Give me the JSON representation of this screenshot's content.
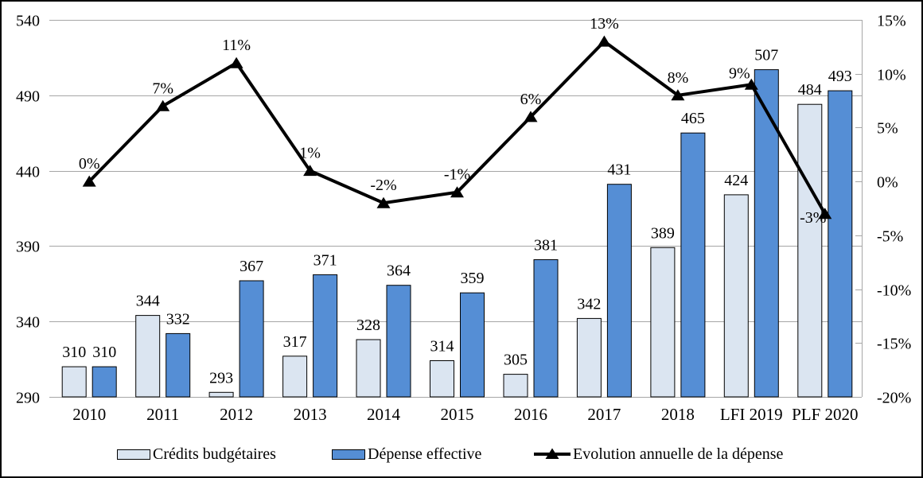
{
  "chart_data": {
    "type": "bar",
    "subtype": "bar+line-dual-axis",
    "categories": [
      "2010",
      "2011",
      "2012",
      "2013",
      "2014",
      "2015",
      "2016",
      "2017",
      "2018",
      "LFI 2019",
      "PLF 2020"
    ],
    "series": [
      {
        "name": "Crédits budgétaires",
        "type": "bar",
        "axis": "left",
        "color": "#dbe5f1",
        "values": [
          310,
          344,
          293,
          317,
          328,
          314,
          305,
          342,
          389,
          424,
          484
        ]
      },
      {
        "name": "Dépense effective",
        "type": "bar",
        "axis": "left",
        "color": "#558ed5",
        "values": [
          310,
          332,
          367,
          371,
          364,
          359,
          381,
          431,
          465,
          507,
          493
        ]
      },
      {
        "name": "Evolution annuelle de la dépense",
        "type": "line",
        "axis": "right",
        "color": "#000000",
        "marker": "triangle",
        "values": [
          0,
          7,
          11,
          1,
          -2,
          -1,
          6,
          13,
          8,
          9,
          -3
        ],
        "labels": [
          "0%",
          "7%",
          "11%",
          "1%",
          "-2%",
          "-1%",
          "6%",
          "13%",
          "8%",
          "9%",
          "-3%"
        ]
      }
    ],
    "left_axis": {
      "min": 290,
      "max": 540,
      "step": 50,
      "ticks": [
        "290",
        "340",
        "390",
        "440",
        "490",
        "540"
      ]
    },
    "right_axis": {
      "min": -20,
      "max": 15,
      "step": 5,
      "ticks": [
        "15%",
        "10%",
        "5%",
        "0%",
        "-5%",
        "-10%",
        "-15%",
        "-20%"
      ]
    },
    "title": "",
    "xlabel": "",
    "ylabel": "",
    "grid": true,
    "legend_position": "bottom",
    "colors": {
      "grid": "#a6a6a6",
      "axis": "#a6a6a6",
      "text": "#000000",
      "frame_border": "#000000",
      "background": "#ffffff"
    }
  },
  "legend": {
    "items": [
      {
        "label": "Crédits budgétaires"
      },
      {
        "label": "Dépense effective"
      },
      {
        "label": "Evolution annuelle de la dépense"
      }
    ]
  }
}
